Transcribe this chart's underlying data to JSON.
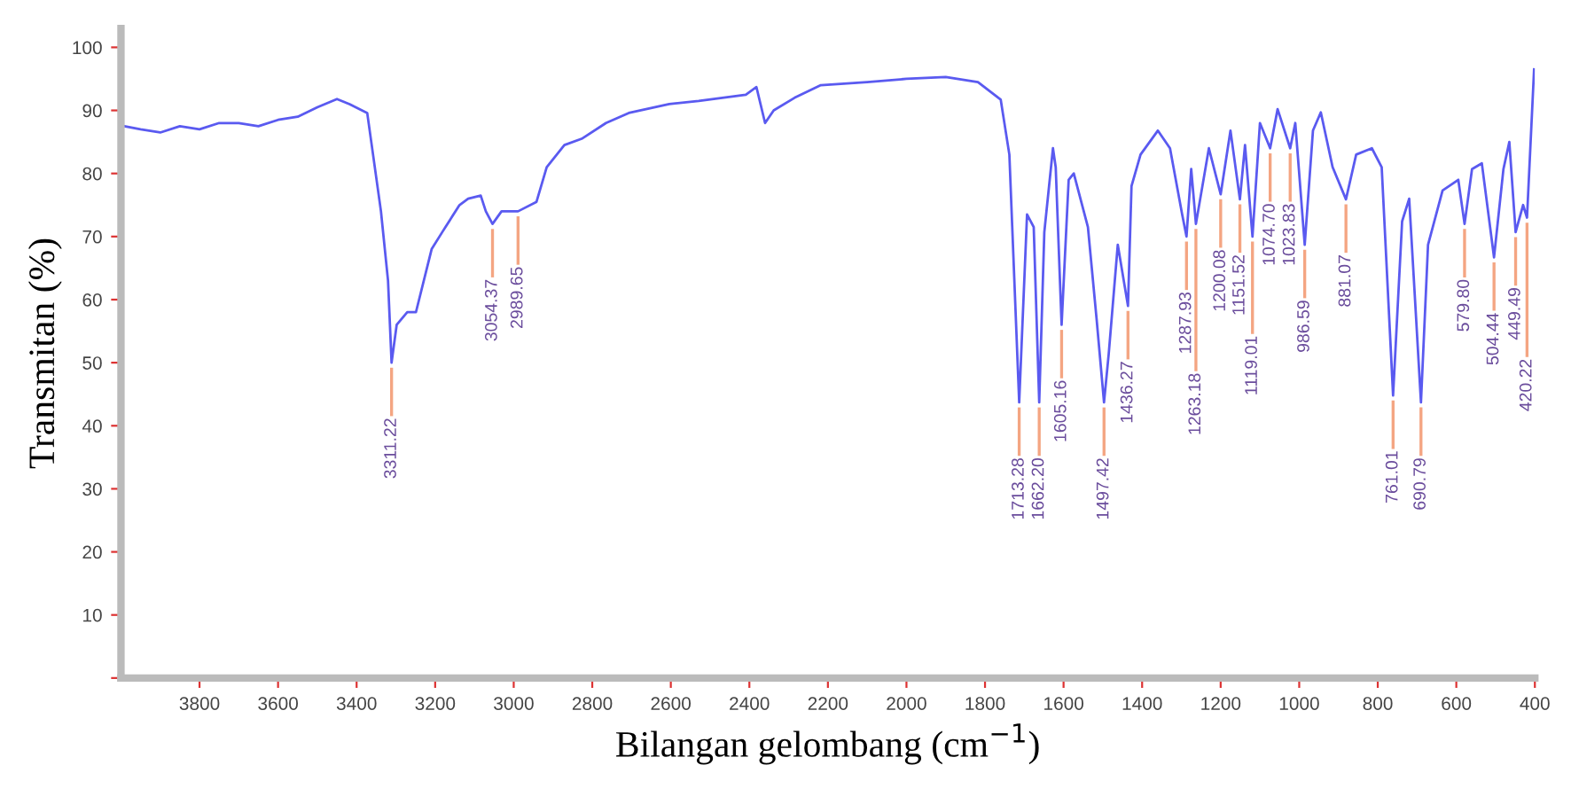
{
  "chart_data": {
    "type": "line",
    "xlabel": "Bilangan gelombang (cm$^{−1}$)",
    "ylabel": "Transmitan (%)",
    "xlim": [
      4000,
      400
    ],
    "ylim": [
      0,
      103
    ],
    "xticks": [
      3800,
      3600,
      3400,
      3200,
      3000,
      2800,
      2600,
      2400,
      2200,
      2000,
      1800,
      1600,
      1400,
      1200,
      1000,
      800,
      600,
      400
    ],
    "yticks": [
      {
        "value": 0,
        "label": null
      },
      10,
      20,
      30,
      40,
      50,
      60,
      70,
      80,
      90,
      100
    ],
    "grid": false,
    "legend": false,
    "marker": "none",
    "line_style": "solid",
    "series": [
      {
        "color": "#5a5af0",
        "x": [
          4000,
          3950,
          3900,
          3850,
          3800,
          3750,
          3700,
          3650,
          3600,
          3550,
          3500,
          3450,
          3418,
          3373,
          3338,
          3320,
          3311,
          3298,
          3271,
          3249,
          3209,
          3182,
          3138,
          3116,
          3084,
          3071,
          3054,
          3031,
          2989,
          2942,
          2916,
          2871,
          2827,
          2765,
          2707,
          2604,
          2529,
          2409,
          2382,
          2360,
          2338,
          2285,
          2218,
          2100,
          2000,
          1900,
          1818,
          1760,
          1738,
          1713,
          1693,
          1676,
          1662,
          1649,
          1627,
          1620,
          1605,
          1587,
          1574,
          1538,
          1516,
          1497,
          1485,
          1462,
          1436,
          1427,
          1404,
          1360,
          1329,
          1298,
          1287,
          1275,
          1263,
          1230,
          1200,
          1175,
          1151,
          1138,
          1119,
          1100,
          1074,
          1055,
          1023,
          1010,
          986,
          965,
          945,
          915,
          881,
          855,
          815,
          790,
          761,
          738,
          720,
          690,
          672,
          635,
          595,
          579,
          560,
          535,
          504,
          480,
          465,
          449,
          430,
          420,
          402
        ],
        "values": [
          87.6,
          87,
          86.5,
          87.5,
          87,
          88,
          88,
          87.5,
          88.5,
          89,
          90.5,
          91.8,
          91,
          89.6,
          74,
          63,
          50,
          56,
          58,
          58,
          68,
          70.7,
          75,
          76,
          76.5,
          74,
          72,
          74,
          74,
          75.5,
          81,
          84.5,
          85.5,
          88,
          89.6,
          91,
          91.5,
          92.5,
          93.7,
          88,
          90,
          92,
          94,
          94.5,
          95,
          95.3,
          94.5,
          91.7,
          83,
          43.7,
          73.5,
          71.5,
          43.7,
          70.7,
          84,
          81,
          56,
          79,
          80,
          71.5,
          57,
          43.7,
          51.4,
          68.7,
          59,
          78,
          83,
          86.8,
          84,
          73.5,
          70,
          80.7,
          72,
          84,
          76.7,
          86.8,
          75.9,
          84.5,
          70,
          88,
          84,
          90.2,
          84,
          88,
          68.7,
          86.8,
          89.7,
          81,
          75.9,
          83,
          84,
          81,
          44.8,
          72.4,
          76,
          43.7,
          68.7,
          77.3,
          79,
          72,
          80.7,
          81.6,
          66.7,
          80.7,
          85,
          70.7,
          75,
          73,
          96.5
        ]
      }
    ],
    "annotations": [
      {
        "text": "3311.22",
        "x": 3311,
        "y": 50
      },
      {
        "text": "3054.37",
        "x": 3054,
        "y": 72
      },
      {
        "text": "2989.65",
        "x": 2989,
        "y": 74
      },
      {
        "text": "1713.28",
        "x": 1713,
        "y": 43.7
      },
      {
        "text": "1662.20",
        "x": 1662,
        "y": 43.7
      },
      {
        "text": "1605.16",
        "x": 1605,
        "y": 56
      },
      {
        "text": "1497.42",
        "x": 1497,
        "y": 43.7
      },
      {
        "text": "1436.27",
        "x": 1436,
        "y": 59
      },
      {
        "text": "1287.93",
        "x": 1287,
        "y": 70
      },
      {
        "text": "1263.18",
        "x": 1263,
        "y": 72
      },
      {
        "text": "1200.08",
        "x": 1200,
        "y": 76.7
      },
      {
        "text": "1151.52",
        "x": 1151,
        "y": 75.9
      },
      {
        "text": "1119.01",
        "x": 1119,
        "y": 70
      },
      {
        "text": "1074.70",
        "x": 1074,
        "y": 84
      },
      {
        "text": "1023.83",
        "x": 1023,
        "y": 84
      },
      {
        "text": "986.59",
        "x": 986,
        "y": 68.7
      },
      {
        "text": "881.07",
        "x": 881,
        "y": 75.9
      },
      {
        "text": "761.01",
        "x": 761,
        "y": 44.8
      },
      {
        "text": "690.79",
        "x": 690,
        "y": 43.7
      },
      {
        "text": "579.80",
        "x": 579,
        "y": 72
      },
      {
        "text": "504.44",
        "x": 504,
        "y": 66.7
      },
      {
        "text": "449.49",
        "x": 449,
        "y": 70.7
      },
      {
        "text": "420.22",
        "x": 420,
        "y": 73
      }
    ]
  }
}
